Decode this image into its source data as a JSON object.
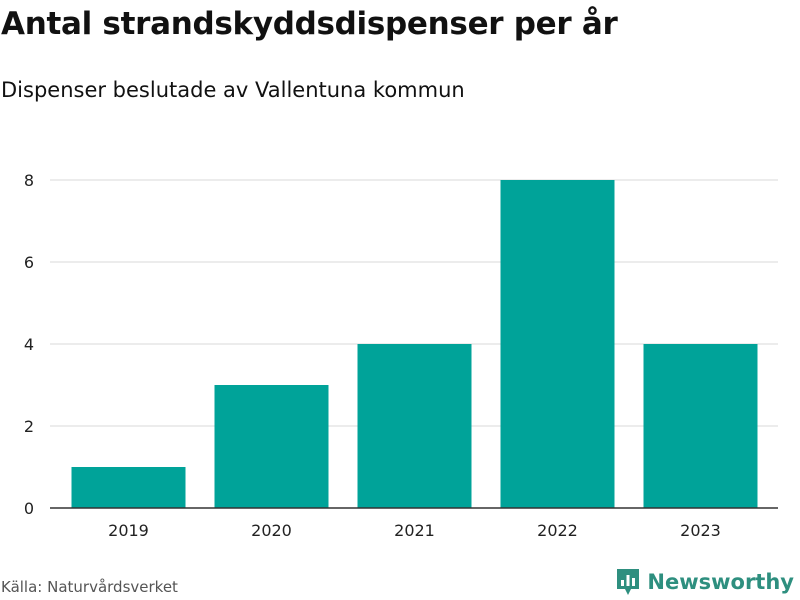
{
  "header": {
    "title": "Antal strandskyddsdispenser per år",
    "subtitle": "Dispenser beslutade av Vallentuna kommun"
  },
  "footer": {
    "source": "Källa: Naturvårdsverket",
    "brand": "Newsworthy",
    "brand_icon": "newsworthy-logo-icon"
  },
  "colors": {
    "bar": "#00a399",
    "grid": "#d9d9d9",
    "axis": "#333333",
    "brand": "#2e8f7f"
  },
  "chart_data": {
    "type": "bar",
    "title": "Antal strandskyddsdispenser per år",
    "subtitle": "Dispenser beslutade av Vallentuna kommun",
    "xlabel": "",
    "ylabel": "",
    "categories": [
      "2019",
      "2020",
      "2021",
      "2022",
      "2023"
    ],
    "values": [
      1,
      3,
      4,
      8,
      4
    ],
    "ylim": [
      0,
      8
    ],
    "yticks": [
      0,
      2,
      4,
      6,
      8
    ],
    "grid": true,
    "legend": "none"
  }
}
